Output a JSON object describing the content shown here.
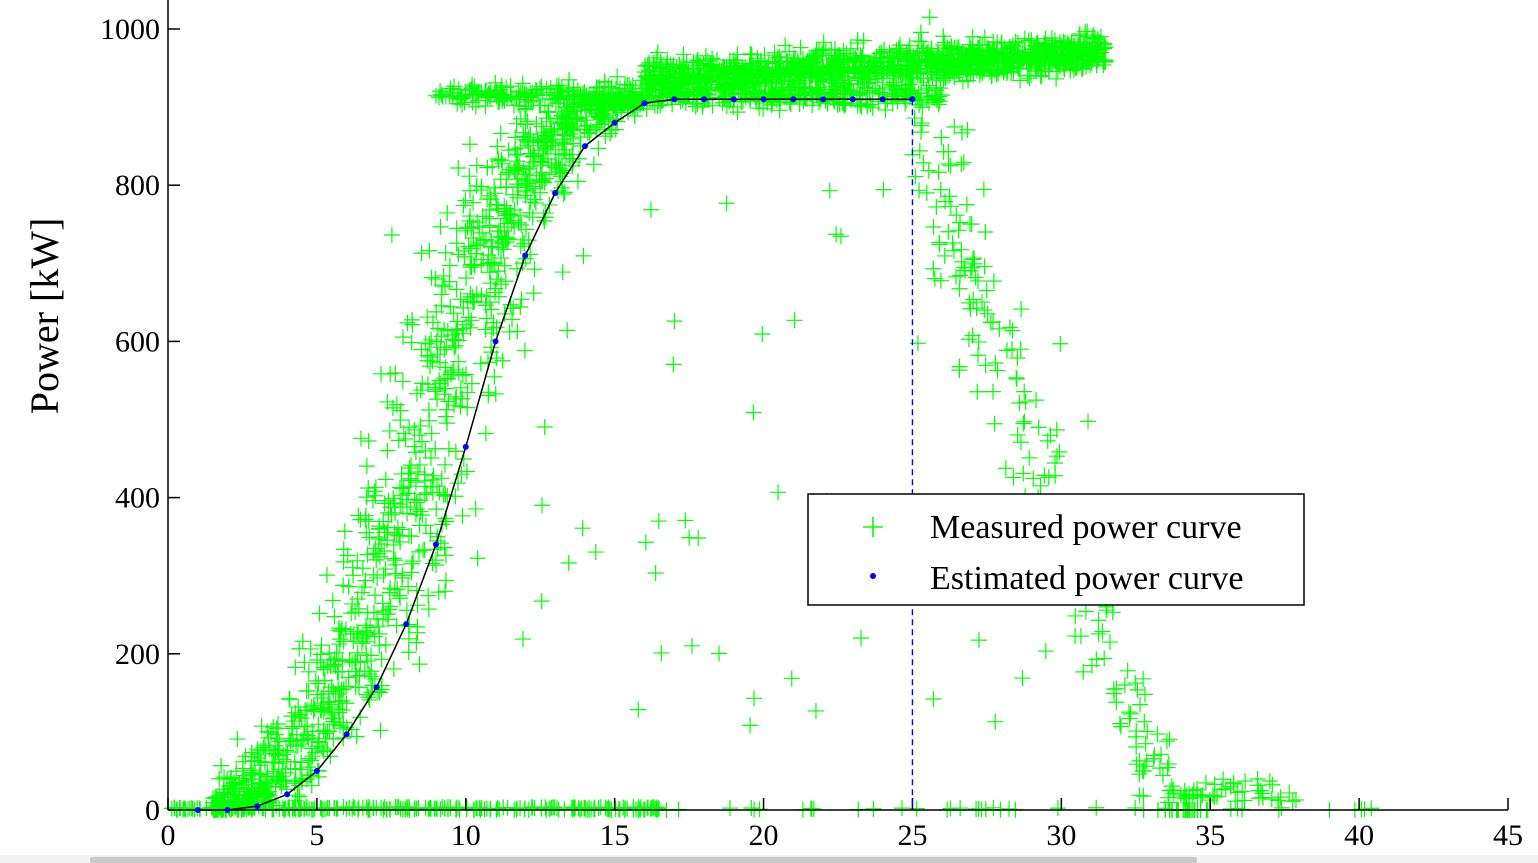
{
  "chart_data": {
    "type": "scatter",
    "ylabel": "Power [kW]",
    "xlim": [
      0,
      45
    ],
    "ylim": [
      0,
      1000
    ],
    "xticks": [
      0,
      5,
      10,
      15,
      20,
      25,
      30,
      35,
      40,
      45
    ],
    "yticks": [
      0,
      200,
      400,
      600,
      800,
      1000
    ],
    "legend_position": "center-right",
    "cut_out_speed": 25,
    "series": [
      {
        "name": "Measured power curve",
        "marker": "plus",
        "color": "#00ff00"
      },
      {
        "name": "Estimated power curve",
        "marker": "dot",
        "color": "#0000ff",
        "x": [
          1,
          2,
          3,
          4,
          5,
          6,
          7,
          8,
          9,
          10,
          11,
          12,
          13,
          14,
          15,
          16,
          17,
          18,
          19,
          20,
          21,
          22,
          23,
          24,
          25
        ],
        "y": [
          0,
          0,
          5,
          20,
          50,
          97,
          157,
          238,
          340,
          465,
          600,
          710,
          790,
          850,
          880,
          905,
          910,
          910,
          910,
          910,
          910,
          910,
          910,
          910,
          910
        ]
      }
    ]
  }
}
